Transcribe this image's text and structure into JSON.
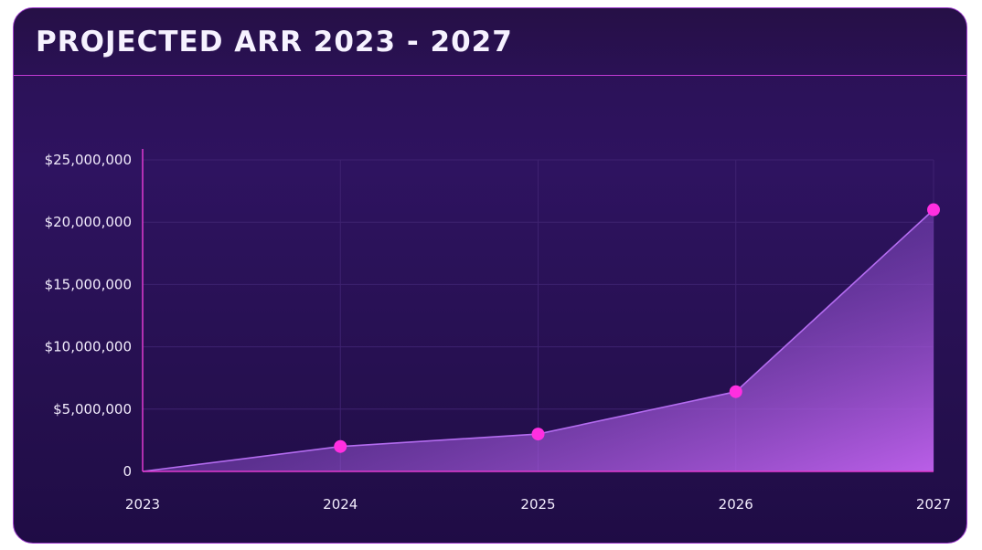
{
  "chart_data": {
    "type": "area",
    "title": "PROJECTED ARR 2023 - 2027",
    "xlabel": "",
    "ylabel": "",
    "categories": [
      "2023",
      "2024",
      "2025",
      "2026",
      "2027"
    ],
    "series": [
      {
        "values": [
          0,
          2000000,
          3000000,
          6400000,
          21000000
        ]
      }
    ],
    "ylim": [
      0,
      25000000
    ],
    "yticks": [
      0,
      5000000,
      10000000,
      15000000,
      20000000,
      25000000
    ],
    "ytick_labels": [
      "0",
      "$5,000,000",
      "$10,000,000",
      "$15,000,000",
      "$20,000,000",
      "$25,000,000"
    ],
    "grid": true,
    "legend": "none",
    "colors": {
      "background": "#2a1155",
      "line": "#b46cf0",
      "marker": "#ff2fe0",
      "axis": "#e03ad0",
      "grid": "#3e2270",
      "text": "#f2ecfc"
    }
  }
}
